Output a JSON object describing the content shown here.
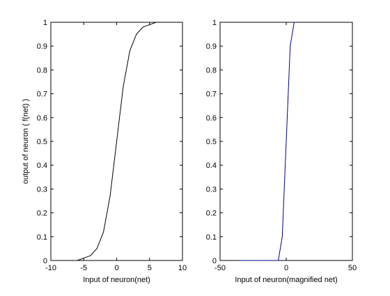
{
  "chart_data": [
    {
      "type": "line",
      "title": "",
      "xlabel": "Input of neuron(net)",
      "ylabel": "output of neuron  ( f(net) )",
      "xlim": [
        -10,
        10
      ],
      "ylim": [
        0,
        1
      ],
      "xticks": [
        "-10",
        "-5",
        "0",
        "5",
        "10"
      ],
      "yticks": [
        "0",
        "0.1",
        "0.2",
        "0.3",
        "0.4",
        "0.5",
        "0.6",
        "0.7",
        "0.8",
        "0.9",
        "1"
      ],
      "grid": false,
      "series": [
        {
          "color": "#000000",
          "x": [
            -10,
            -9,
            -8,
            -7,
            -6,
            -5,
            -4,
            -3,
            -2,
            -1,
            0,
            1,
            2,
            3,
            4,
            5,
            6
          ],
          "y": [
            0.0,
            0.0,
            0.0,
            0.0,
            0.0,
            0.01,
            0.02,
            0.05,
            0.12,
            0.27,
            0.5,
            0.73,
            0.88,
            0.95,
            0.98,
            0.99,
            1.0
          ]
        }
      ]
    },
    {
      "type": "line",
      "title": "",
      "xlabel": "Input of neuron(magnified net)",
      "ylabel": "",
      "xlim": [
        -50,
        50
      ],
      "ylim": [
        0,
        1
      ],
      "xticks": [
        "-50",
        "0",
        "50"
      ],
      "yticks": [
        "0",
        "0.1",
        "0.2",
        "0.3",
        "0.4",
        "0.5",
        "0.6",
        "0.7",
        "0.8",
        "0.9",
        "1"
      ],
      "grid": false,
      "series": [
        {
          "color": "#00008b",
          "x": [
            -36,
            -30,
            -24,
            -18,
            -12,
            -6,
            -3,
            0,
            3,
            6,
            7
          ],
          "y": [
            0.0,
            0.0,
            0.0,
            0.0,
            0.0,
            0.0,
            0.1,
            0.5,
            0.9,
            1.0,
            1.0
          ]
        }
      ]
    }
  ]
}
